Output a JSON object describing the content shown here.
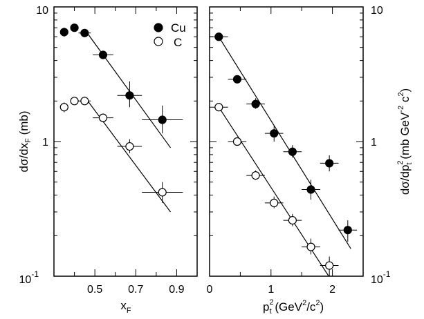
{
  "chart_data": [
    {
      "type": "scatter",
      "panel": "left",
      "xlabel_main": "x",
      "xlabel_sub": "F",
      "ylabel_main": "dσ/dx",
      "ylabel_sub": "F",
      "ylabel_unit": " (mb)",
      "xlim": [
        0.3,
        1.0
      ],
      "ylim": [
        0.1,
        10
      ],
      "y_scale": "log",
      "x_ticks": [
        {
          "value": 0.5,
          "label": "0.5"
        },
        {
          "value": 0.7,
          "label": "0.7"
        },
        {
          "value": 0.9,
          "label": "0.9"
        }
      ],
      "y_ticks": [
        {
          "value": 10,
          "label": "10",
          "exp": ""
        },
        {
          "value": 1,
          "label": "1",
          "exp": ""
        },
        {
          "value": 0.1,
          "label": "10",
          "exp": "-1"
        }
      ],
      "legend": [
        {
          "name": "Cu",
          "marker": "filled-circle"
        },
        {
          "name": "C",
          "marker": "open-circle"
        }
      ],
      "series": [
        {
          "name": "Cu",
          "marker": "filled",
          "points": [
            {
              "x": 0.35,
              "y": 6.5,
              "xerr": 0.02,
              "yerr_lo": 0.5,
              "yerr_hi": 0.5
            },
            {
              "x": 0.4,
              "y": 7.0,
              "xerr": 0.02,
              "yerr_lo": 0.3,
              "yerr_hi": 0.3
            },
            {
              "x": 0.45,
              "y": 6.4,
              "xerr": 0.03,
              "yerr_lo": 0.3,
              "yerr_hi": 0.3
            },
            {
              "x": 0.54,
              "y": 4.4,
              "xerr": 0.05,
              "yerr_lo": 0.3,
              "yerr_hi": 0.3
            },
            {
              "x": 0.67,
              "y": 2.2,
              "xerr": 0.06,
              "yerr_lo": 0.4,
              "yerr_hi": 0.6
            },
            {
              "x": 0.83,
              "y": 1.45,
              "xerr": 0.1,
              "yerr_lo": 0.3,
              "yerr_hi": 0.4
            }
          ],
          "fit": [
            [
              0.45,
              6.8
            ],
            [
              0.87,
              0.9
            ]
          ]
        },
        {
          "name": "C",
          "marker": "open",
          "points": [
            {
              "x": 0.35,
              "y": 1.8,
              "xerr": 0.02,
              "yerr_lo": 0.15,
              "yerr_hi": 0.15
            },
            {
              "x": 0.4,
              "y": 2.0,
              "xerr": 0.02,
              "yerr_lo": 0.1,
              "yerr_hi": 0.1
            },
            {
              "x": 0.45,
              "y": 2.0,
              "xerr": 0.03,
              "yerr_lo": 0.1,
              "yerr_hi": 0.1
            },
            {
              "x": 0.54,
              "y": 1.5,
              "xerr": 0.05,
              "yerr_lo": 0.1,
              "yerr_hi": 0.1
            },
            {
              "x": 0.67,
              "y": 0.92,
              "xerr": 0.06,
              "yerr_lo": 0.1,
              "yerr_hi": 0.12
            },
            {
              "x": 0.83,
              "y": 0.42,
              "xerr": 0.1,
              "yerr_lo": 0.07,
              "yerr_hi": 0.08
            }
          ],
          "fit": [
            [
              0.45,
              2.15
            ],
            [
              0.87,
              0.3
            ]
          ]
        }
      ]
    },
    {
      "type": "scatter",
      "panel": "right",
      "xlabel_main": "p",
      "xlabel_sub": "t",
      "xlabel_sup": "2",
      "xlabel_unit_a": "  (GeV",
      "xlabel_unit_sup1": "2",
      "xlabel_unit_b": "/c",
      "xlabel_unit_sup2": "2",
      "xlabel_unit_c": ")",
      "ylabel_main": "dσ/dp",
      "ylabel_sub": "t",
      "ylabel_sup": "2",
      "ylabel_unit_a": "  (mb GeV",
      "ylabel_unit_sup1": "-2",
      "ylabel_unit_b": " c",
      "ylabel_unit_sup2": "2",
      "ylabel_unit_c": ")",
      "xlim": [
        0,
        2.5
      ],
      "ylim": [
        0.1,
        10
      ],
      "y_scale": "log",
      "x_ticks": [
        {
          "value": 0,
          "label": "0"
        },
        {
          "value": 1,
          "label": "1"
        },
        {
          "value": 2,
          "label": "2"
        }
      ],
      "y_ticks": [
        {
          "value": 10,
          "label": "10",
          "exp": ""
        },
        {
          "value": 1,
          "label": "1",
          "exp": ""
        },
        {
          "value": 0.1,
          "label": "10",
          "exp": "-1"
        }
      ],
      "series": [
        {
          "name": "Cu",
          "marker": "filled",
          "points": [
            {
              "x": 0.15,
              "y": 6.0,
              "xerr": 0.15,
              "yerr_lo": 0.3,
              "yerr_hi": 0.3
            },
            {
              "x": 0.45,
              "y": 2.9,
              "xerr": 0.15,
              "yerr_lo": 0.2,
              "yerr_hi": 0.2
            },
            {
              "x": 0.75,
              "y": 1.9,
              "xerr": 0.15,
              "yerr_lo": 0.15,
              "yerr_hi": 0.2
            },
            {
              "x": 1.05,
              "y": 1.15,
              "xerr": 0.15,
              "yerr_lo": 0.15,
              "yerr_hi": 0.15
            },
            {
              "x": 1.35,
              "y": 0.84,
              "xerr": 0.15,
              "yerr_lo": 0.08,
              "yerr_hi": 0.1
            },
            {
              "x": 1.65,
              "y": 0.44,
              "xerr": 0.15,
              "yerr_lo": 0.07,
              "yerr_hi": 0.08
            },
            {
              "x": 1.95,
              "y": 0.69,
              "xerr": 0.15,
              "yerr_lo": 0.09,
              "yerr_hi": 0.1
            },
            {
              "x": 2.25,
              "y": 0.22,
              "xerr": 0.15,
              "yerr_lo": 0.04,
              "yerr_hi": 0.04
            }
          ],
          "fit": [
            [
              0.15,
              6.0
            ],
            [
              2.3,
              0.16
            ]
          ]
        },
        {
          "name": "C",
          "marker": "open",
          "points": [
            {
              "x": 0.15,
              "y": 1.8,
              "xerr": 0.15,
              "yerr_lo": 0.1,
              "yerr_hi": 0.1
            },
            {
              "x": 0.45,
              "y": 1.0,
              "xerr": 0.15,
              "yerr_lo": 0.06,
              "yerr_hi": 0.06
            },
            {
              "x": 0.75,
              "y": 0.56,
              "xerr": 0.15,
              "yerr_lo": 0.04,
              "yerr_hi": 0.05
            },
            {
              "x": 1.05,
              "y": 0.35,
              "xerr": 0.15,
              "yerr_lo": 0.03,
              "yerr_hi": 0.04
            },
            {
              "x": 1.35,
              "y": 0.26,
              "xerr": 0.15,
              "yerr_lo": 0.025,
              "yerr_hi": 0.03
            },
            {
              "x": 1.65,
              "y": 0.165,
              "xerr": 0.15,
              "yerr_lo": 0.02,
              "yerr_hi": 0.025
            },
            {
              "x": 1.95,
              "y": 0.12,
              "xerr": 0.15,
              "yerr_lo": 0.02,
              "yerr_hi": 0.02
            }
          ],
          "fit": [
            [
              0.15,
              1.8
            ],
            [
              1.94,
              0.1
            ]
          ]
        }
      ]
    }
  ]
}
